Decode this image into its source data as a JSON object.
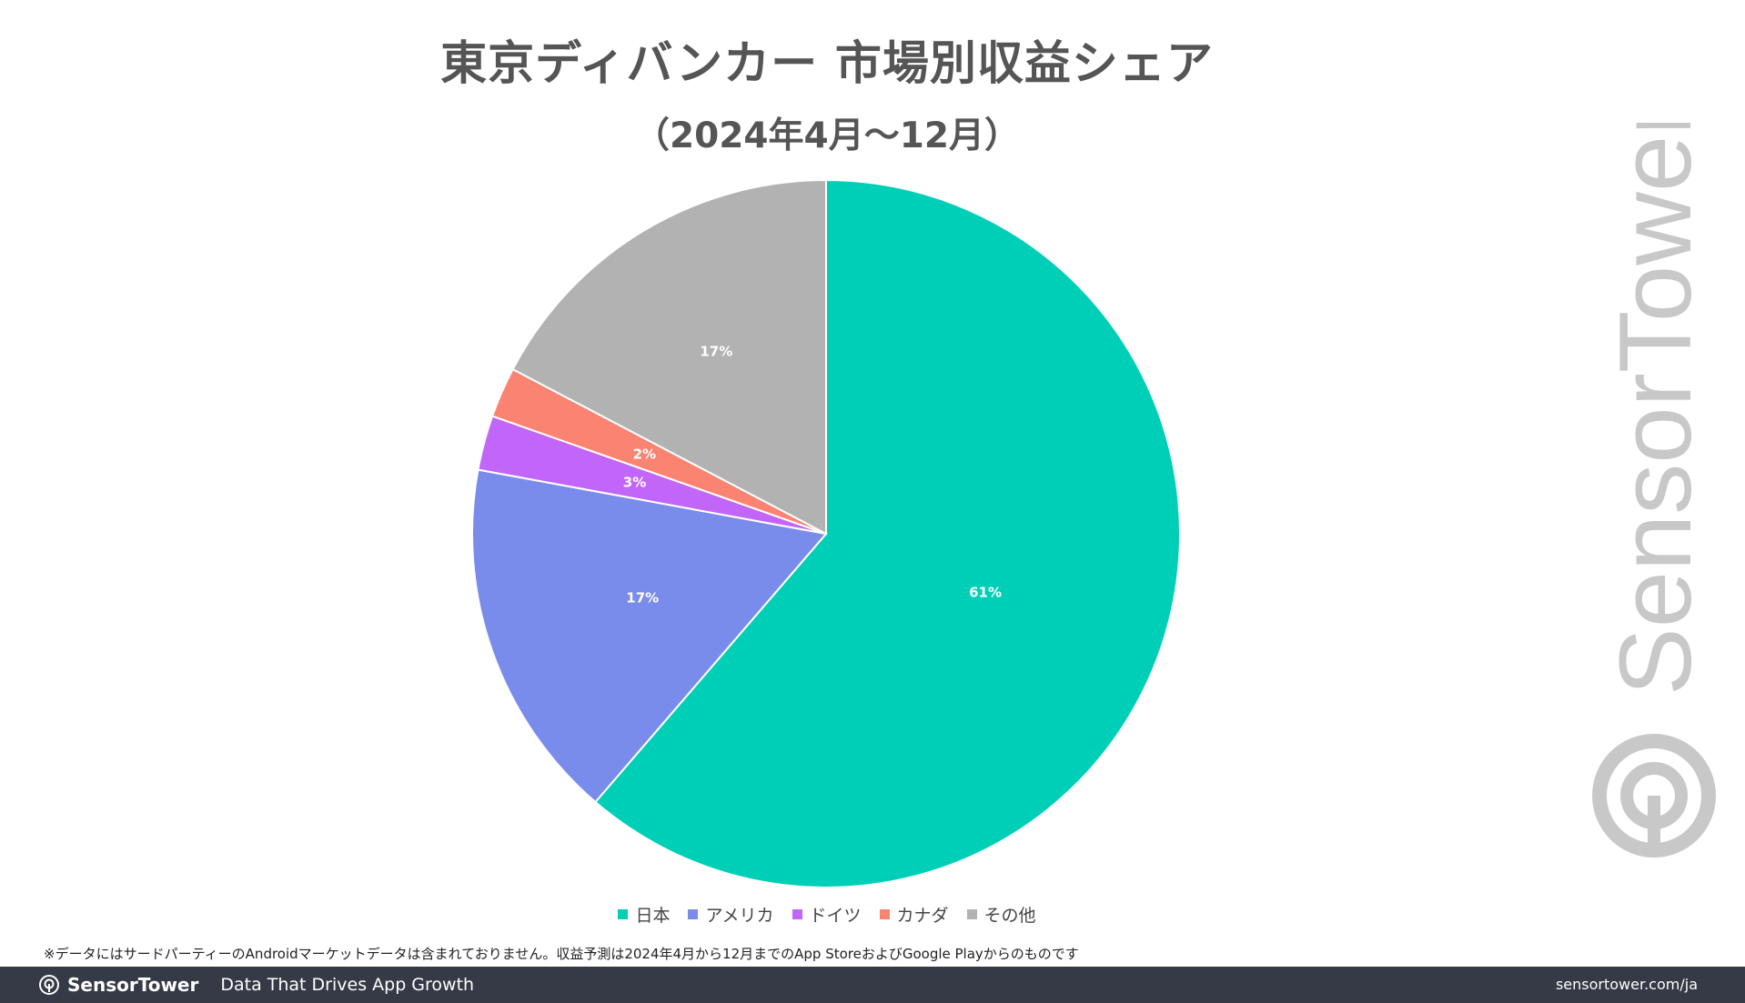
{
  "header": {
    "title": "東京ディバンカー 市場別収益シェア",
    "subtitle": "（2024年4月〜12月）"
  },
  "footnote": "※データにはサードパーティーのAndroidマーケットデータは含まれておりません。収益予測は2024年4月から12月までのApp StoreおよびGoogle Playからのものです",
  "footer": {
    "brand": "SensorTower",
    "tagline": "Data That Drives App Growth",
    "url": "sensortower.com/ja"
  },
  "watermark": {
    "text": "SensorTower"
  },
  "colors": {
    "japan": "#00cfb7",
    "usa": "#7a8ceb",
    "germany": "#c266fa",
    "canada": "#fb8372",
    "other": "#b2b2b2",
    "footer_bg": "#353a46"
  },
  "chart_data": {
    "type": "pie",
    "title": "東京ディバンカー 市場別収益シェア",
    "subtitle": "（2024年4月〜12月）",
    "legend_position": "bottom",
    "start_angle": "12 o'clock, clockwise",
    "slices": [
      {
        "name": "日本",
        "value": 61.3,
        "label": "61%",
        "color": "#00cfb7"
      },
      {
        "name": "アメリカ",
        "value": 16.6,
        "label": "17%",
        "color": "#7a8ceb"
      },
      {
        "name": "ドイツ",
        "value": 2.5,
        "label": "3%",
        "color": "#c266fa"
      },
      {
        "name": "カナダ",
        "value": 2.3,
        "label": "2%",
        "color": "#fb8372"
      },
      {
        "name": "その他",
        "value": 17.3,
        "label": "17%",
        "color": "#b2b2b2"
      }
    ]
  }
}
